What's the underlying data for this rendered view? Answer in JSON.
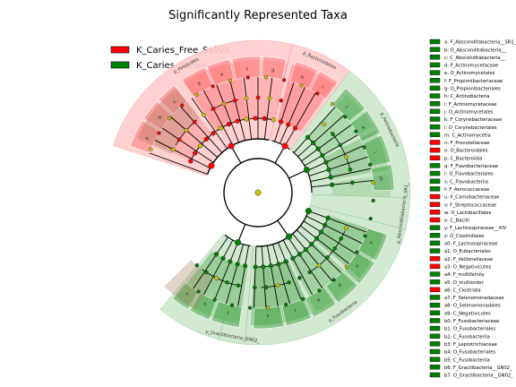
{
  "chart_data": {
    "type": "cladogram",
    "title": "Significantly Represented Taxa",
    "legend_position": "top-left",
    "groups": [
      {
        "name": "K_Caries_Free_Saliva",
        "color": "#ff0000"
      },
      {
        "name": "K_Caries_Saliva",
        "color": "#008000"
      }
    ],
    "colors": {
      "free": "#ff0000",
      "caries": "#008000",
      "free_bg": "#ffcccc",
      "caries_bg": "#cce5cc"
    },
    "phyla": [
      {
        "name": "p_Firmicutes",
        "group": "K_Caries_Free_Saliva",
        "start_deg": 198,
        "end_deg": 283
      },
      {
        "name": "p_Bacteroidetes",
        "group": "K_Caries_Free_Saliva",
        "start_deg": 283,
        "end_deg": 307
      },
      {
        "name": "p_Actinobacteria",
        "group": "K_Caries_Saliva",
        "start_deg": 307,
        "end_deg": 2
      },
      {
        "name": "p_Absconditabacteria_SR1_",
        "group": "K_Caries_Saliva",
        "start_deg": 2,
        "end_deg": 14
      },
      {
        "name": "p_Fusobacteria",
        "group": "K_Caries_Saliva",
        "start_deg": 14,
        "end_deg": 95
      },
      {
        "name": "p_Gracilibacteria_GN02_",
        "group": "K_Caries_Saliva",
        "start_deg": 95,
        "end_deg": 105
      },
      {
        "name": "p_Gracilibacteria_GN02_",
        "group": "K_Caries_Saliva",
        "start_deg": 105,
        "end_deg": 130
      }
    ],
    "clades": [
      {
        "letter": "a",
        "name": "F_Absconditabacteria__SR1_",
        "group": "K_Caries_Saliva"
      },
      {
        "letter": "b",
        "name": "O_Absconditabacteria__",
        "group": "K_Caries_Saliva"
      },
      {
        "letter": "c",
        "name": "C_Absconditabacteria__",
        "group": "K_Caries_Saliva"
      },
      {
        "letter": "d",
        "name": "F_Actinomycetaceae",
        "group": "K_Caries_Saliva"
      },
      {
        "letter": "e",
        "name": "O_Actinomycetales",
        "group": "K_Caries_Saliva"
      },
      {
        "letter": "f",
        "name": "F_Propionibacteriaceae",
        "group": "K_Caries_Saliva"
      },
      {
        "letter": "g",
        "name": "O_Propionibacteriales",
        "group": "K_Caries_Saliva"
      },
      {
        "letter": "h",
        "name": "C_Actinobacteria",
        "group": "K_Caries_Saliva"
      },
      {
        "letter": "i",
        "name": "F_Actinomycetaceae",
        "group": "K_Caries_Saliva"
      },
      {
        "letter": "j",
        "name": "O_Actinomycetales",
        "group": "K_Caries_Saliva"
      },
      {
        "letter": "k",
        "name": "F_Corynebacteriaceae",
        "group": "K_Caries_Saliva"
      },
      {
        "letter": "l",
        "name": "O_Corynebacteriales",
        "group": "K_Caries_Saliva"
      },
      {
        "letter": "m",
        "name": "C_Actinomycetia",
        "group": "K_Caries_Saliva"
      },
      {
        "letter": "n",
        "name": "F_Prevotellaceae",
        "group": "K_Caries_Free_Saliva"
      },
      {
        "letter": "o",
        "name": "O_Bacteroidales",
        "group": "K_Caries_Free_Saliva"
      },
      {
        "letter": "p",
        "name": "C_Bacteroidia",
        "group": "K_Caries_Free_Saliva"
      },
      {
        "letter": "q",
        "name": "F_Flavobacteriaceae",
        "group": "K_Caries_Saliva"
      },
      {
        "letter": "r",
        "name": "O_Flavobacteriales",
        "group": "K_Caries_Saliva"
      },
      {
        "letter": "s",
        "name": "C_Flavobacteriia",
        "group": "K_Caries_Saliva"
      },
      {
        "letter": "t",
        "name": "F_Aerococcaceae",
        "group": "K_Caries_Saliva"
      },
      {
        "letter": "u",
        "name": "F_Carnobacteriaceae",
        "group": "K_Caries_Free_Saliva"
      },
      {
        "letter": "v",
        "name": "F_Streptococcaceae",
        "group": "K_Caries_Free_Saliva"
      },
      {
        "letter": "w",
        "name": "O_Lactobacillales",
        "group": "K_Caries_Free_Saliva"
      },
      {
        "letter": "x",
        "name": "C_Bacilli",
        "group": "K_Caries_Free_Saliva"
      },
      {
        "letter": "y",
        "name": "F_Lachnospiraceae__XIV",
        "group": "K_Caries_Saliva"
      },
      {
        "letter": "z",
        "name": "O_Clostridiales",
        "group": "K_Caries_Saliva"
      },
      {
        "letter": "a0",
        "name": "F_Lachnospiraceae",
        "group": "K_Caries_Saliva"
      },
      {
        "letter": "a1",
        "name": "O_Eubacteriales",
        "group": "K_Caries_Saliva"
      },
      {
        "letter": "a2",
        "name": "F_Veillonellaceae",
        "group": "K_Caries_Free_Saliva"
      },
      {
        "letter": "a3",
        "name": "O_Negativicutes",
        "group": "K_Caries_Free_Saliva"
      },
      {
        "letter": "a4",
        "name": "F_multifamily",
        "group": "K_Caries_Saliva"
      },
      {
        "letter": "a5",
        "name": "O_multiorder",
        "group": "K_Caries_Saliva"
      },
      {
        "letter": "a6",
        "name": "C_Clostridia",
        "group": "K_Caries_Free_Saliva"
      },
      {
        "letter": "a7",
        "name": "F_Selenomonadaceae",
        "group": "K_Caries_Saliva"
      },
      {
        "letter": "a8",
        "name": "O_Selenomonadales",
        "group": "K_Caries_Saliva"
      },
      {
        "letter": "a9",
        "name": "C_Negativicutes",
        "group": "K_Caries_Saliva"
      },
      {
        "letter": "b0",
        "name": "F_Fusobacteriaceae",
        "group": "K_Caries_Saliva"
      },
      {
        "letter": "b1",
        "name": "O_Fusobacteriales",
        "group": "K_Caries_Saliva"
      },
      {
        "letter": "b2",
        "name": "C_Fusobacteriia",
        "group": "K_Caries_Saliva"
      },
      {
        "letter": "b3",
        "name": "F_Leptotrichiaceae",
        "group": "K_Caries_Saliva"
      },
      {
        "letter": "b4",
        "name": "O_Fusobacteriales",
        "group": "K_Caries_Saliva"
      },
      {
        "letter": "b5",
        "name": "C_Fusobacteriia",
        "group": "K_Caries_Saliva"
      },
      {
        "letter": "b6",
        "name": "F_Gracilibacteria__GN02_",
        "group": "K_Caries_Saliva"
      },
      {
        "letter": "b7",
        "name": "O_Gracilibacteria__GN02_",
        "group": "K_Caries_Saliva"
      }
    ]
  }
}
